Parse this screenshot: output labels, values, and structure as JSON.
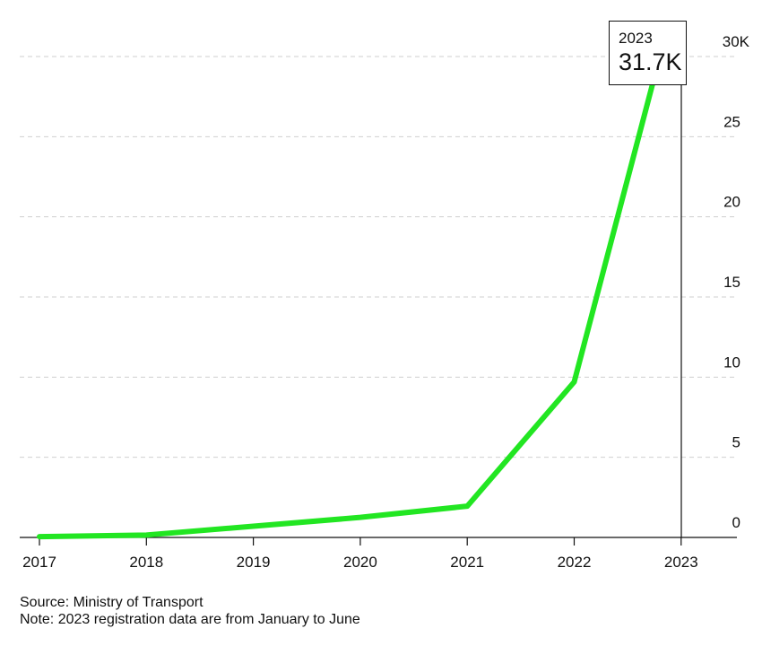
{
  "chart_data": {
    "type": "line",
    "x": [
      "2017",
      "2018",
      "2019",
      "2020",
      "2021",
      "2022",
      "2023"
    ],
    "series": [
      {
        "values": [
          0.05,
          0.15,
          0.7,
          1.25,
          1.95,
          9.7,
          31.7
        ],
        "color": "#22e622"
      }
    ],
    "y_ticks": [
      "0",
      "5",
      "10",
      "15",
      "20",
      "25",
      "30K"
    ],
    "ylim": [
      0,
      30
    ],
    "grid": true,
    "y_axis_side": "right",
    "callout": {
      "year": "2023",
      "value": "31.7K"
    }
  },
  "footer": {
    "source": "Source: Ministry of Transport",
    "note": "Note: 2023 registration data are from January to June"
  }
}
